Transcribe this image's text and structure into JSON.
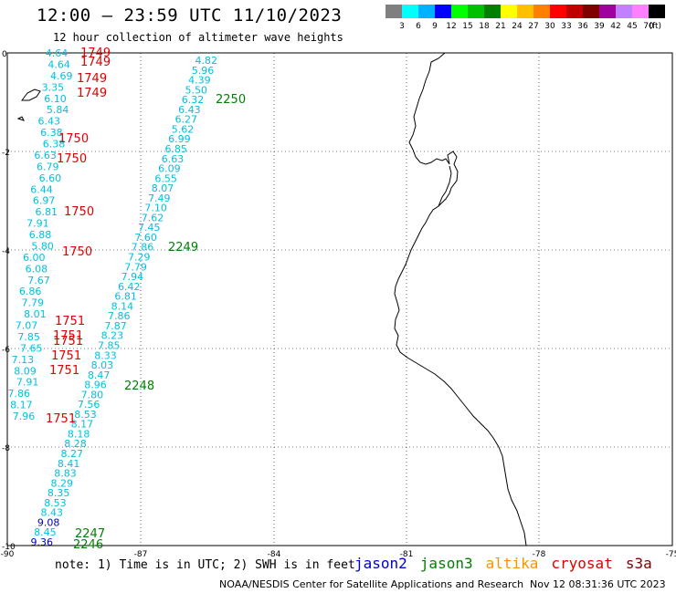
{
  "header": {
    "title": "12:00 – 23:59 UTC 11/10/2023",
    "subtitle": "12 hour collection of altimeter wave heights"
  },
  "colorbar": {
    "unit": "(ft)",
    "ticks": [
      "3",
      "6",
      "9",
      "12",
      "15",
      "18",
      "21",
      "24",
      "27",
      "30",
      "33",
      "36",
      "39",
      "42",
      "45",
      "70"
    ],
    "colors": [
      "#7f7f7f",
      "#00ffff",
      "#00b2ff",
      "#0000ff",
      "#00ff00",
      "#00c000",
      "#008000",
      "#ffff00",
      "#ffc000",
      "#ff8000",
      "#ff0000",
      "#c00000",
      "#800000",
      "#a000a0",
      "#c080ff",
      "#ff80ff",
      "#000000"
    ]
  },
  "axes": {
    "lon_labels": [
      "-90",
      "-87",
      "-84",
      "-81",
      "-78",
      "-75"
    ],
    "lat_labels": [
      "0",
      "-2",
      "-4",
      "-6",
      "-8",
      "-10"
    ]
  },
  "tracks": {
    "colors": {
      "cyan": "#00c0e0",
      "blue": "#0000c8",
      "red": "#e00000",
      "green": "#008000"
    },
    "pass_labels": [
      {
        "text": "1749",
        "color": "red"
      },
      {
        "text": "1749",
        "color": "red"
      },
      {
        "text": "1749",
        "color": "red"
      },
      {
        "text": "1749",
        "color": "red"
      },
      {
        "text": "1750",
        "color": "red"
      },
      {
        "text": "1750",
        "color": "red"
      },
      {
        "text": "1750",
        "color": "red"
      },
      {
        "text": "1750",
        "color": "red"
      },
      {
        "text": "1751",
        "color": "red"
      },
      {
        "text": "1751",
        "color": "red"
      },
      {
        "text": "1751",
        "color": "red"
      },
      {
        "text": "1751",
        "color": "red"
      },
      {
        "text": "1751",
        "color": "red"
      },
      {
        "text": "1751",
        "color": "red"
      },
      {
        "text": "2250",
        "color": "green"
      },
      {
        "text": "2249",
        "color": "green"
      },
      {
        "text": "2248",
        "color": "green"
      },
      {
        "text": "2247",
        "color": "green"
      },
      {
        "text": "2246",
        "color": "green"
      }
    ],
    "track_a_values": [
      "4.82",
      "5.96",
      "4.39",
      "5.50",
      "6.32",
      "6.43",
      "6.27",
      "5.62",
      "6.99",
      "6.85",
      "6.63",
      "6.09",
      "6.55",
      "8.07",
      "7.49",
      "7.10",
      "7.62",
      "7.45",
      "7.60",
      "7.86",
      "7.29",
      "7.79",
      "7.94",
      "6.42",
      "6.81",
      "8.14",
      "7.86",
      "7.87",
      "8.23",
      "7.85",
      "8.33",
      "8.03",
      "8.47",
      "8.96",
      "7.80",
      "7.56",
      "8.53",
      "8.17",
      "8.18",
      "8.28",
      "8.27",
      "8.41",
      "8.83",
      "8.29",
      "8.35",
      "8.53",
      "8.43",
      "9.08",
      "8.45",
      "9.36"
    ],
    "track_b_values": [
      {
        "v": "4.64",
        "c": "cyan"
      },
      {
        "v": "4.64",
        "c": "cyan"
      },
      {
        "v": "4.69",
        "c": "cyan"
      },
      {
        "v": "3.35",
        "c": "cyan"
      },
      {
        "v": "6.10",
        "c": "cyan"
      },
      {
        "v": "5.84",
        "c": "cyan"
      },
      {
        "v": "6.43",
        "c": "cyan"
      },
      {
        "v": "6.38",
        "c": "cyan"
      },
      {
        "v": "6.38",
        "c": "cyan"
      },
      {
        "v": "6.63",
        "c": "cyan"
      },
      {
        "v": "6.79",
        "c": "cyan"
      },
      {
        "v": "6.60",
        "c": "cyan"
      },
      {
        "v": "6.44",
        "c": "cyan"
      },
      {
        "v": "6.97",
        "c": "cyan"
      },
      {
        "v": "6.81",
        "c": "cyan"
      },
      {
        "v": "7.91",
        "c": "cyan"
      },
      {
        "v": "6.88",
        "c": "cyan"
      },
      {
        "v": "5.80",
        "c": "cyan"
      },
      {
        "v": "6.00",
        "c": "cyan"
      },
      {
        "v": "6.08",
        "c": "cyan"
      },
      {
        "v": "7.67",
        "c": "cyan"
      },
      {
        "v": "6.86",
        "c": "cyan"
      },
      {
        "v": "7.79",
        "c": "cyan"
      },
      {
        "v": "8.01",
        "c": "cyan"
      },
      {
        "v": "7.07",
        "c": "cyan"
      },
      {
        "v": "7.85",
        "c": "cyan"
      },
      {
        "v": "7.65",
        "c": "cyan"
      },
      {
        "v": "7.13",
        "c": "cyan"
      },
      {
        "v": "8.09",
        "c": "cyan"
      },
      {
        "v": "7.91",
        "c": "cyan"
      },
      {
        "v": "7.86",
        "c": "cyan"
      },
      {
        "v": "8.17",
        "c": "cyan"
      },
      {
        "v": "7.96",
        "c": "cyan"
      }
    ]
  },
  "note": "note:  1) Time is in UTC;  2) SWH is in feet",
  "satellites": [
    {
      "name": "jason2",
      "color": "#0000c8"
    },
    {
      "name": "jason3",
      "color": "#008000"
    },
    {
      "name": "altika",
      "color": "#ff9000"
    },
    {
      "name": "cryosat",
      "color": "#e00000"
    },
    {
      "name": "s3a",
      "color": "#800000"
    }
  ],
  "footer": {
    "credit": "NOAA/NESDIS Center for Satellite Applications and Research",
    "timestamp": "Nov 12 08:31:36 UTC 2023"
  }
}
